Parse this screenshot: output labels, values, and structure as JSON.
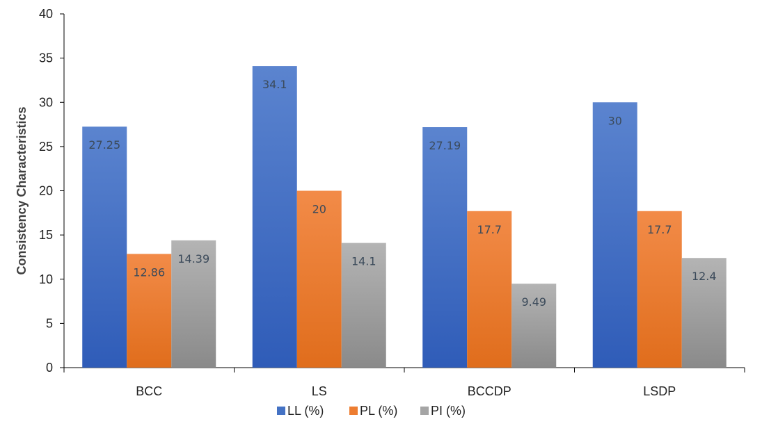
{
  "chart_data": {
    "type": "bar",
    "title": "",
    "xlabel": "",
    "ylabel": "Consistency Characteristics",
    "ylim": [
      0,
      40
    ],
    "yticks": [
      0,
      5,
      10,
      15,
      20,
      25,
      30,
      35,
      40
    ],
    "categories": [
      "BCC",
      "LS",
      "BCCDP",
      "LSDP"
    ],
    "series": [
      {
        "name": "LL (%)",
        "color": "#4472c4",
        "values": [
          27.25,
          34.1,
          27.19,
          30
        ],
        "labels": [
          "27.25",
          "34.1",
          "27.19",
          "30"
        ]
      },
      {
        "name": "PL (%)",
        "color": "#ed7d31",
        "values": [
          12.86,
          20,
          17.7,
          17.7
        ],
        "labels": [
          "12.86",
          "20",
          "17.7",
          "17.7"
        ]
      },
      {
        "name": "PI (%)",
        "color": "#a5a5a5",
        "values": [
          14.39,
          14.1,
          9.49,
          12.4
        ],
        "labels": [
          "14.39",
          "14.1",
          "9.49",
          "12.4"
        ]
      }
    ],
    "grid": false,
    "legend_position": "bottom"
  }
}
